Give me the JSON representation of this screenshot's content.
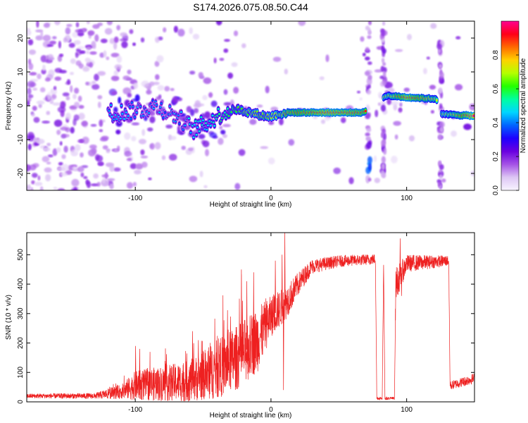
{
  "title": "S174.2026.075.08.50.C44",
  "chart_data": [
    {
      "type": "heatmap",
      "name": "spectrogram",
      "xlabel": "Height of straight line (km)",
      "ylabel": "Frequency (Hz)",
      "xlim": [
        -180,
        150
      ],
      "ylim": [
        -25,
        25
      ],
      "xticks": [
        -100,
        0,
        100
      ],
      "yticks": [
        -20,
        -10,
        0,
        10,
        20
      ],
      "colorbar": {
        "label": "Normalized spectral amplitude",
        "ticks": [
          0.0,
          0.2,
          0.4,
          0.6,
          0.8
        ],
        "range": [
          0,
          1
        ],
        "colormap": [
          "#f8f4ff",
          "#ddc6f4",
          "#a552e6",
          "#6a00e0",
          "#1e00ff",
          "#0064ff",
          "#00d6ff",
          "#00ffa0",
          "#24ff00",
          "#b4ff00",
          "#ffd200",
          "#ff6a00",
          "#ff0018",
          "#ff0090"
        ]
      },
      "ridge": [
        {
          "x": -110,
          "freq": -2.0,
          "amp": 0.35
        },
        {
          "x": -95,
          "freq": -1.0,
          "amp": 0.3
        },
        {
          "x": -85,
          "freq": 0.0,
          "amp": 0.3
        },
        {
          "x": -70,
          "freq": -3.0,
          "amp": 0.3
        },
        {
          "x": -57,
          "freq": -7.0,
          "amp": 0.38
        },
        {
          "x": -45,
          "freq": -4.5,
          "amp": 0.4
        },
        {
          "x": -35,
          "freq": -2.0,
          "amp": 0.45
        },
        {
          "x": -25,
          "freq": -1.0,
          "amp": 0.52
        },
        {
          "x": -15,
          "freq": -2.0,
          "amp": 0.58
        },
        {
          "x": -5,
          "freq": -3.0,
          "amp": 0.55
        },
        {
          "x": 0,
          "freq": -3.2,
          "amp": 0.6
        },
        {
          "x": 5,
          "freq": -2.5,
          "amp": 0.65
        },
        {
          "x": 12,
          "freq": -2.0,
          "amp": 0.78
        },
        {
          "x": 40,
          "freq": -2.0,
          "amp": 0.9
        },
        {
          "x": 68,
          "freq": -2.0,
          "amp": 0.85
        },
        {
          "x": 85,
          "freq": 3.0,
          "amp": 0.65
        },
        {
          "x": 100,
          "freq": 2.5,
          "amp": 0.9
        },
        {
          "x": 122,
          "freq": 2.0,
          "amp": 0.7
        },
        {
          "x": 126,
          "freq": -2.5,
          "amp": 0.6
        },
        {
          "x": 150,
          "freq": -3.0,
          "amp": 0.95
        }
      ],
      "vertical_bands_x": [
        72,
        83,
        125
      ]
    },
    {
      "type": "line",
      "name": "snr",
      "xlabel": "Height of straight line (km)",
      "ylabel": "SNR (10 * v/v)",
      "xlim": [
        -180,
        150
      ],
      "ylim": [
        0,
        575
      ],
      "xticks": [
        -100,
        0,
        100
      ],
      "yticks": [
        0,
        100,
        200,
        300,
        400,
        500
      ],
      "color": "#ee2020",
      "envelope": [
        {
          "x": -180,
          "base": 20,
          "noise": 8
        },
        {
          "x": -130,
          "base": 20,
          "noise": 10
        },
        {
          "x": -110,
          "base": 35,
          "noise": 25
        },
        {
          "x": -100,
          "base": 55,
          "noise": 50
        },
        {
          "x": -60,
          "base": 70,
          "noise": 70
        },
        {
          "x": -40,
          "base": 110,
          "noise": 100
        },
        {
          "x": -25,
          "base": 150,
          "noise": 110
        },
        {
          "x": -10,
          "base": 210,
          "noise": 110
        },
        {
          "x": 0,
          "base": 290,
          "noise": 70
        },
        {
          "x": 10,
          "base": 330,
          "noise": 60
        },
        {
          "x": 20,
          "base": 400,
          "noise": 40
        },
        {
          "x": 30,
          "base": 460,
          "noise": 25
        },
        {
          "x": 50,
          "base": 478,
          "noise": 20
        },
        {
          "x": 77,
          "base": 485,
          "noise": 18
        },
        {
          "x": 78,
          "base": 12,
          "noise": 5
        },
        {
          "x": 82,
          "base": 12,
          "noise": 5
        },
        {
          "x": 83,
          "base": 470,
          "noise": 15
        },
        {
          "x": 84,
          "base": 12,
          "noise": 5
        },
        {
          "x": 91,
          "base": 12,
          "noise": 5
        },
        {
          "x": 92,
          "base": 400,
          "noise": 60
        },
        {
          "x": 100,
          "base": 470,
          "noise": 30
        },
        {
          "x": 131,
          "base": 480,
          "noise": 18
        },
        {
          "x": 132,
          "base": 55,
          "noise": 15
        },
        {
          "x": 150,
          "base": 80,
          "noise": 18
        }
      ],
      "spikes": [
        {
          "x": -100,
          "y": 190
        },
        {
          "x": -97,
          "y": 180
        },
        {
          "x": -58,
          "y": 240
        },
        {
          "x": -30,
          "y": 290
        },
        {
          "x": -22,
          "y": 450
        },
        {
          "x": -18,
          "y": 410
        },
        {
          "x": -13,
          "y": 440
        },
        {
          "x": 3,
          "y": 480
        },
        {
          "x": 8,
          "y": 500
        },
        {
          "x": 10,
          "y": 575
        },
        {
          "x": 9,
          "y": 40
        },
        {
          "x": 95,
          "y": 555
        },
        {
          "x": 96,
          "y": 360
        }
      ]
    }
  ]
}
